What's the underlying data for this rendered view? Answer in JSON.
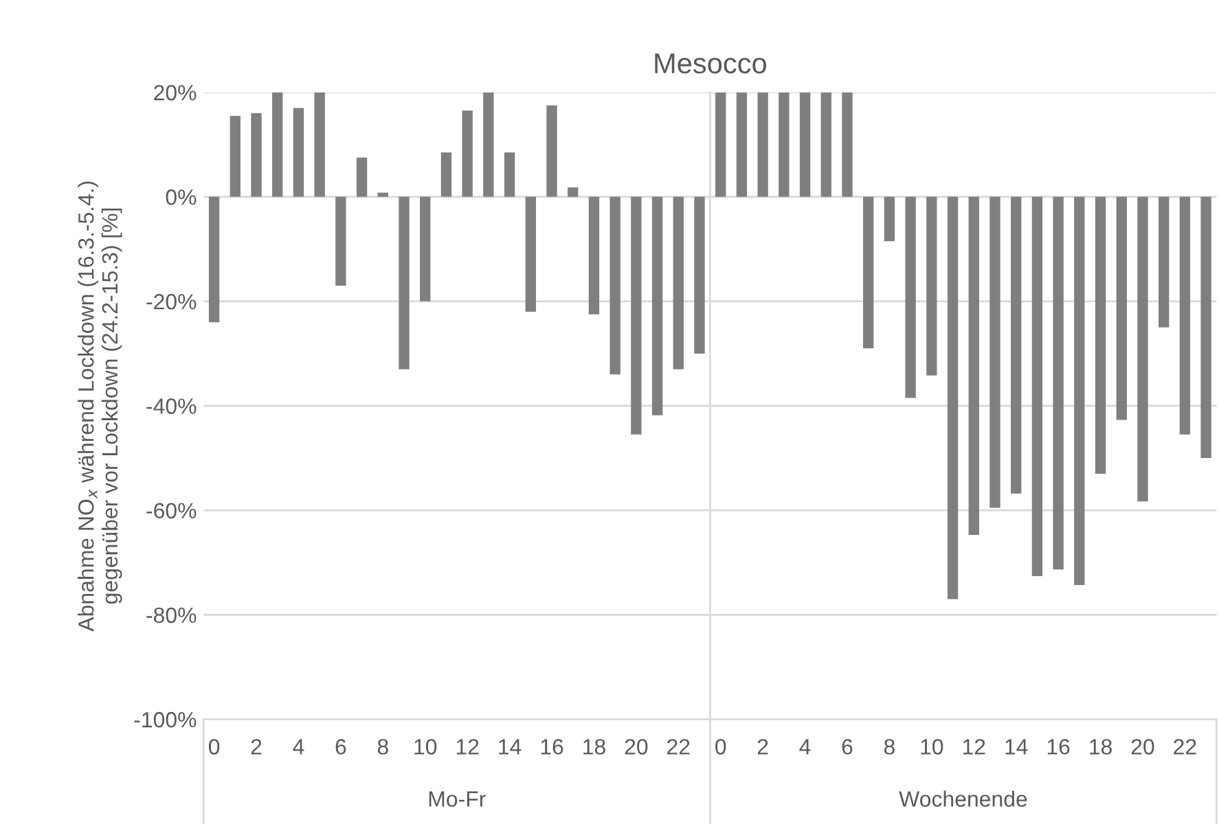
{
  "chart_data": {
    "type": "bar",
    "title": "Mesocco",
    "ylabel": "Abnahme NO$_{x}$ während Lockdown (16.3.-5.4.)\ngegenüber vor Lockdown (24.2-15.3) [%]",
    "categories": [
      "0",
      null,
      "2",
      null,
      "4",
      null,
      "6",
      null,
      "8",
      null,
      "10",
      null,
      "12",
      null,
      "14",
      null,
      "16",
      null,
      "18",
      null,
      "20",
      null,
      "22",
      null,
      "0",
      null,
      "2",
      null,
      "4",
      null,
      "6",
      null,
      "8",
      null,
      "10",
      null,
      "12",
      null,
      "14",
      null,
      "16",
      null,
      "18",
      null,
      "20",
      null,
      "22",
      null
    ],
    "values": [
      -24,
      15.5,
      16,
      20,
      17,
      20,
      -17,
      7.5,
      0.8,
      -33,
      -20,
      8.5,
      16.5,
      20,
      8.5,
      -22,
      17.5,
      1.8,
      -22.5,
      -34,
      -45.5,
      -41.8,
      -33,
      -30,
      20,
      20,
      20,
      20,
      20,
      20,
      20,
      -29,
      -8.5,
      -38.5,
      -34.2,
      -77,
      -64.7,
      -59.5,
      -56.8,
      -72.6,
      -71.3,
      -74.3,
      -53,
      -42.7,
      -58.3,
      -25,
      -45.5,
      -50
    ],
    "color": "#7f7f7f",
    "annotations": [
      "Mo-Fr",
      "Wochenende"
    ],
    "ylim": [
      -100,
      20
    ],
    "yticks": [
      {
        "value": -100,
        "label": "-100%"
      },
      {
        "value": -80,
        "label": "-80%"
      },
      {
        "value": -60,
        "label": "-60%"
      },
      {
        "value": -40,
        "label": "-40%"
      },
      {
        "value": -20,
        "label": "-20%"
      },
      {
        "value": 0,
        "label": "0%"
      },
      {
        "value": 20,
        "label": "20%"
      }
    ],
    "grid": "y",
    "legend": false
  }
}
